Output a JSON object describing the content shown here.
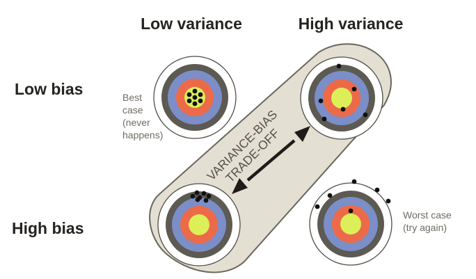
{
  "columns": {
    "low_variance": "Low variance",
    "high_variance": "High variance"
  },
  "rows": {
    "low_bias": "Low bias",
    "high_bias": "High bias"
  },
  "tradeoff_label": {
    "line1": "VARIANCE-BIAS",
    "line2": "TRADE-OFF"
  },
  "annotations": {
    "best_case": "Best\ncase\n(never\nhappens)",
    "worst_case": "Worst case\n(try again)"
  },
  "colors": {
    "ring_outer": "#5c5a52",
    "ring_blue": "#7b8ec8",
    "ring_orange": "#ec6a48",
    "bullseye": "#dcef58",
    "band_fill": "#e4dfd3",
    "band_stroke": "#68655b",
    "arrow": "#1e1c19",
    "hit": "#111111"
  },
  "icons": {
    "arrow": "double-headed-arrow-icon"
  },
  "targets": [
    {
      "id": "low-bias-low-variance",
      "hits": [
        [
          0,
          -9
        ],
        [
          -8,
          -4
        ],
        [
          8,
          -4
        ],
        [
          -8,
          5
        ],
        [
          8,
          5
        ],
        [
          0,
          9
        ],
        [
          0,
          0
        ]
      ]
    },
    {
      "id": "low-bias-high-variance",
      "hits": [
        [
          -4,
          -46
        ],
        [
          18,
          -13
        ],
        [
          -30,
          4
        ],
        [
          2,
          16
        ],
        [
          34,
          24
        ],
        [
          -25,
          30
        ]
      ]
    },
    {
      "id": "high-bias-low-variance",
      "hits": [
        [
          -3,
          -46
        ],
        [
          7,
          -45
        ],
        [
          14,
          -41
        ],
        [
          -9,
          -41
        ],
        [
          1,
          -39
        ],
        [
          10,
          -35
        ],
        [
          -2,
          -36
        ]
      ]
    },
    {
      "id": "high-bias-high-variance",
      "hits": [
        [
          5,
          -61
        ],
        [
          -30,
          -41
        ],
        [
          38,
          -49
        ],
        [
          -48,
          -25
        ],
        [
          54,
          -33
        ],
        [
          0,
          -19
        ]
      ]
    }
  ]
}
